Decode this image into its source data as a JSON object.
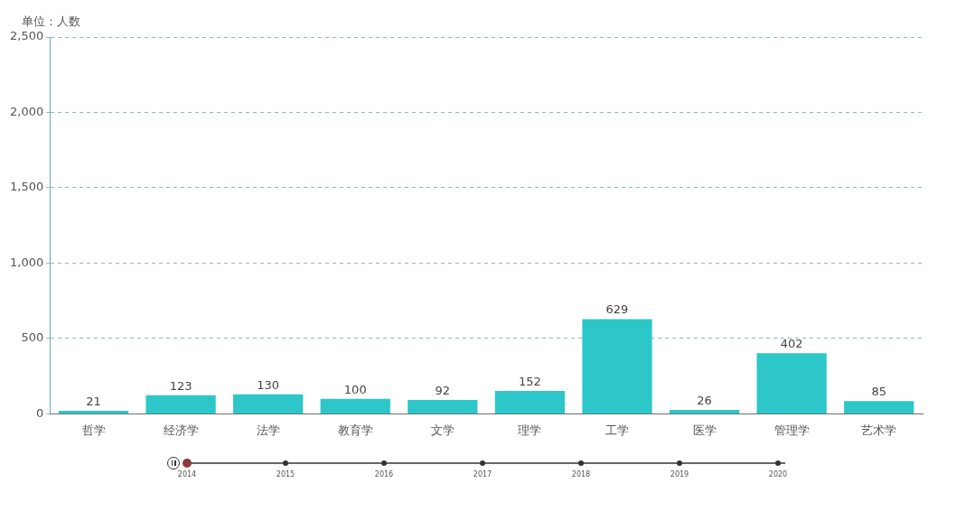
{
  "chart_data": {
    "type": "bar",
    "ylabel": "单位：人数",
    "categories": [
      "哲学",
      "经济学",
      "法学",
      "教育学",
      "文学",
      "理学",
      "工学",
      "医学",
      "管理学",
      "艺术学"
    ],
    "values": [
      21,
      123,
      130,
      100,
      92,
      152,
      629,
      26,
      402,
      85
    ],
    "color": "#2ec7c9",
    "ylim": [
      0,
      2500
    ],
    "yticks": [
      0,
      500,
      {
        "value": 1000,
        "label": "1,000"
      },
      {
        "value": 1500,
        "label": "1,500"
      },
      {
        "value": 2000,
        "label": "2,000"
      },
      {
        "value": 2500,
        "label": "2,500"
      }
    ],
    "grid": "y",
    "data_labels": true,
    "legend": false,
    "annotations": [
      "2014",
      "2015",
      "2016",
      "2017",
      "2018",
      "2019",
      "2020"
    ]
  }
}
